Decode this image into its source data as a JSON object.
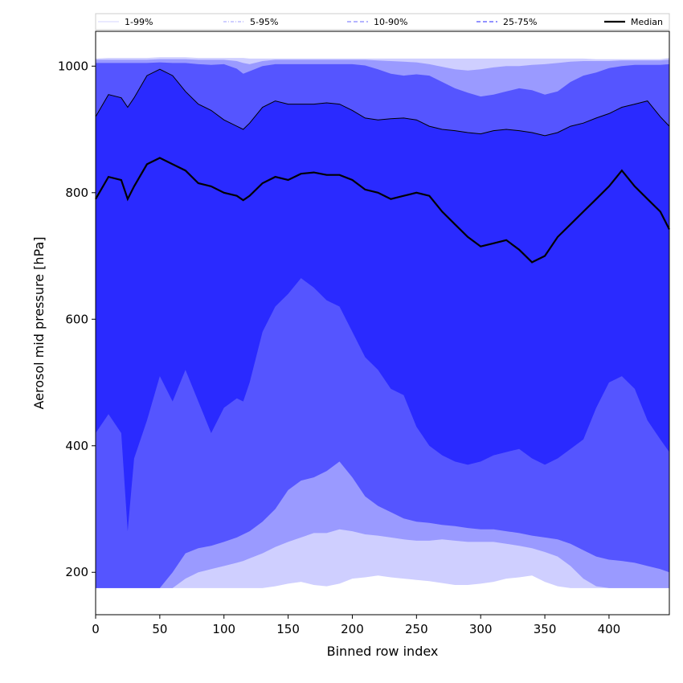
{
  "chart_data": {
    "type": "area",
    "title": "",
    "xlabel": "Binned row index",
    "ylabel": "Aerosol mid pressure [hPa]",
    "xlim": [
      0,
      447
    ],
    "ylim": [
      133,
      1055
    ],
    "xticks": [
      0,
      50,
      100,
      150,
      200,
      250,
      300,
      350,
      400
    ],
    "yticks": [
      200,
      400,
      600,
      800,
      1000
    ],
    "legend": {
      "placement": "top, spanning full width",
      "entries": [
        {
          "label": "1-99%",
          "style": "solid-thin",
          "color": "#c8c8ff"
        },
        {
          "label": "5-95%",
          "style": "dashdot-thin",
          "color": "#8080ff"
        },
        {
          "label": "10-90%",
          "style": "dashed",
          "color": "#8888ff"
        },
        {
          "label": "25-75%",
          "style": "dashed",
          "color": "#5050ff"
        },
        {
          "label": "Median",
          "style": "solid-thick",
          "color": "#000000"
        }
      ]
    },
    "x": [
      0,
      10,
      20,
      25,
      30,
      40,
      50,
      60,
      70,
      80,
      90,
      100,
      110,
      115,
      120,
      130,
      140,
      150,
      160,
      170,
      180,
      190,
      200,
      210,
      220,
      230,
      240,
      250,
      260,
      270,
      280,
      290,
      300,
      310,
      320,
      330,
      340,
      350,
      360,
      370,
      380,
      390,
      400,
      410,
      420,
      430,
      440,
      447
    ],
    "bands": [
      {
        "name": "1-99%",
        "fill": "#cfcfff",
        "low": [
          175,
          175,
          175,
          175,
          175,
          175,
          175,
          175,
          175,
          175,
          175,
          175,
          175,
          175,
          175,
          175,
          178,
          182,
          185,
          180,
          178,
          182,
          190,
          192,
          195,
          192,
          190,
          188,
          186,
          183,
          180,
          180,
          182,
          185,
          190,
          192,
          195,
          185,
          178,
          175,
          175,
          175,
          175,
          175,
          175,
          175,
          175,
          175
        ],
        "high": [
          1012,
          1013,
          1013,
          1013,
          1013,
          1013,
          1014,
          1014,
          1014,
          1013,
          1013,
          1013,
          1013,
          1013,
          1012,
          1012,
          1012,
          1012,
          1012,
          1012,
          1012,
          1012,
          1012,
          1012,
          1012,
          1012,
          1012,
          1012,
          1012,
          1012,
          1012,
          1012,
          1012,
          1012,
          1012,
          1012,
          1012,
          1012,
          1012,
          1012,
          1012,
          1011,
          1011,
          1011,
          1011,
          1011,
          1011,
          1013
        ]
      },
      {
        "name": "5-95%",
        "fill": "#9a9aff",
        "low": [
          175,
          175,
          175,
          175,
          175,
          175,
          175,
          175,
          190,
          200,
          205,
          210,
          215,
          218,
          222,
          230,
          240,
          248,
          255,
          262,
          262,
          268,
          265,
          260,
          258,
          255,
          252,
          250,
          250,
          252,
          250,
          248,
          248,
          248,
          245,
          242,
          238,
          232,
          225,
          210,
          190,
          178,
          175,
          175,
          175,
          175,
          175,
          175
        ],
        "high": [
          1010,
          1010,
          1010,
          1010,
          1010,
          1010,
          1011,
          1011,
          1011,
          1010,
          1010,
          1010,
          1008,
          1005,
          1003,
          1008,
          1010,
          1010,
          1010,
          1010,
          1010,
          1010,
          1010,
          1010,
          1009,
          1008,
          1007,
          1006,
          1003,
          999,
          995,
          993,
          995,
          998,
          1000,
          1000,
          1002,
          1003,
          1005,
          1007,
          1008,
          1008,
          1008,
          1009,
          1009,
          1009,
          1009,
          1010
        ]
      },
      {
        "name": "10-90%",
        "fill": "#5555ff",
        "low": [
          175,
          175,
          175,
          175,
          175,
          175,
          175,
          200,
          230,
          238,
          242,
          248,
          255,
          260,
          265,
          280,
          300,
          330,
          345,
          350,
          360,
          375,
          350,
          320,
          305,
          295,
          285,
          280,
          278,
          275,
          273,
          270,
          268,
          268,
          265,
          262,
          258,
          255,
          252,
          245,
          235,
          225,
          220,
          218,
          215,
          210,
          205,
          200
        ],
        "high": [
          1005,
          1005,
          1005,
          1005,
          1005,
          1005,
          1006,
          1005,
          1005,
          1003,
          1002,
          1003,
          996,
          988,
          992,
          1000,
          1003,
          1003,
          1003,
          1003,
          1003,
          1003,
          1003,
          1001,
          995,
          988,
          985,
          987,
          985,
          975,
          965,
          958,
          952,
          955,
          960,
          965,
          962,
          955,
          960,
          975,
          985,
          990,
          997,
          1000,
          1002,
          1002,
          1002,
          1003
        ]
      },
      {
        "name": "25-75%",
        "fill": "#2a2aff",
        "low": [
          420,
          450,
          420,
          265,
          380,
          440,
          510,
          470,
          520,
          470,
          420,
          460,
          475,
          470,
          500,
          580,
          620,
          640,
          665,
          650,
          630,
          620,
          580,
          540,
          520,
          490,
          480,
          430,
          400,
          385,
          375,
          370,
          375,
          385,
          390,
          395,
          380,
          370,
          380,
          395,
          410,
          460,
          500,
          510,
          490,
          440,
          410,
          390
        ],
        "high": [
          920,
          955,
          950,
          935,
          950,
          985,
          995,
          985,
          960,
          940,
          930,
          915,
          905,
          900,
          910,
          935,
          945,
          940,
          940,
          940,
          942,
          940,
          930,
          918,
          915,
          917,
          918,
          915,
          905,
          900,
          898,
          895,
          893,
          898,
          900,
          898,
          895,
          890,
          895,
          905,
          910,
          918,
          925,
          935,
          940,
          945,
          920,
          905
        ]
      }
    ],
    "median": {
      "name": "Median",
      "color": "#000000",
      "values": [
        790,
        825,
        820,
        790,
        810,
        845,
        855,
        845,
        835,
        815,
        810,
        800,
        795,
        788,
        795,
        815,
        825,
        820,
        830,
        832,
        828,
        828,
        820,
        805,
        800,
        790,
        795,
        800,
        795,
        770,
        750,
        730,
        715,
        720,
        725,
        710,
        690,
        700,
        730,
        750,
        770,
        790,
        810,
        835,
        810,
        790,
        770,
        742
      ]
    }
  }
}
